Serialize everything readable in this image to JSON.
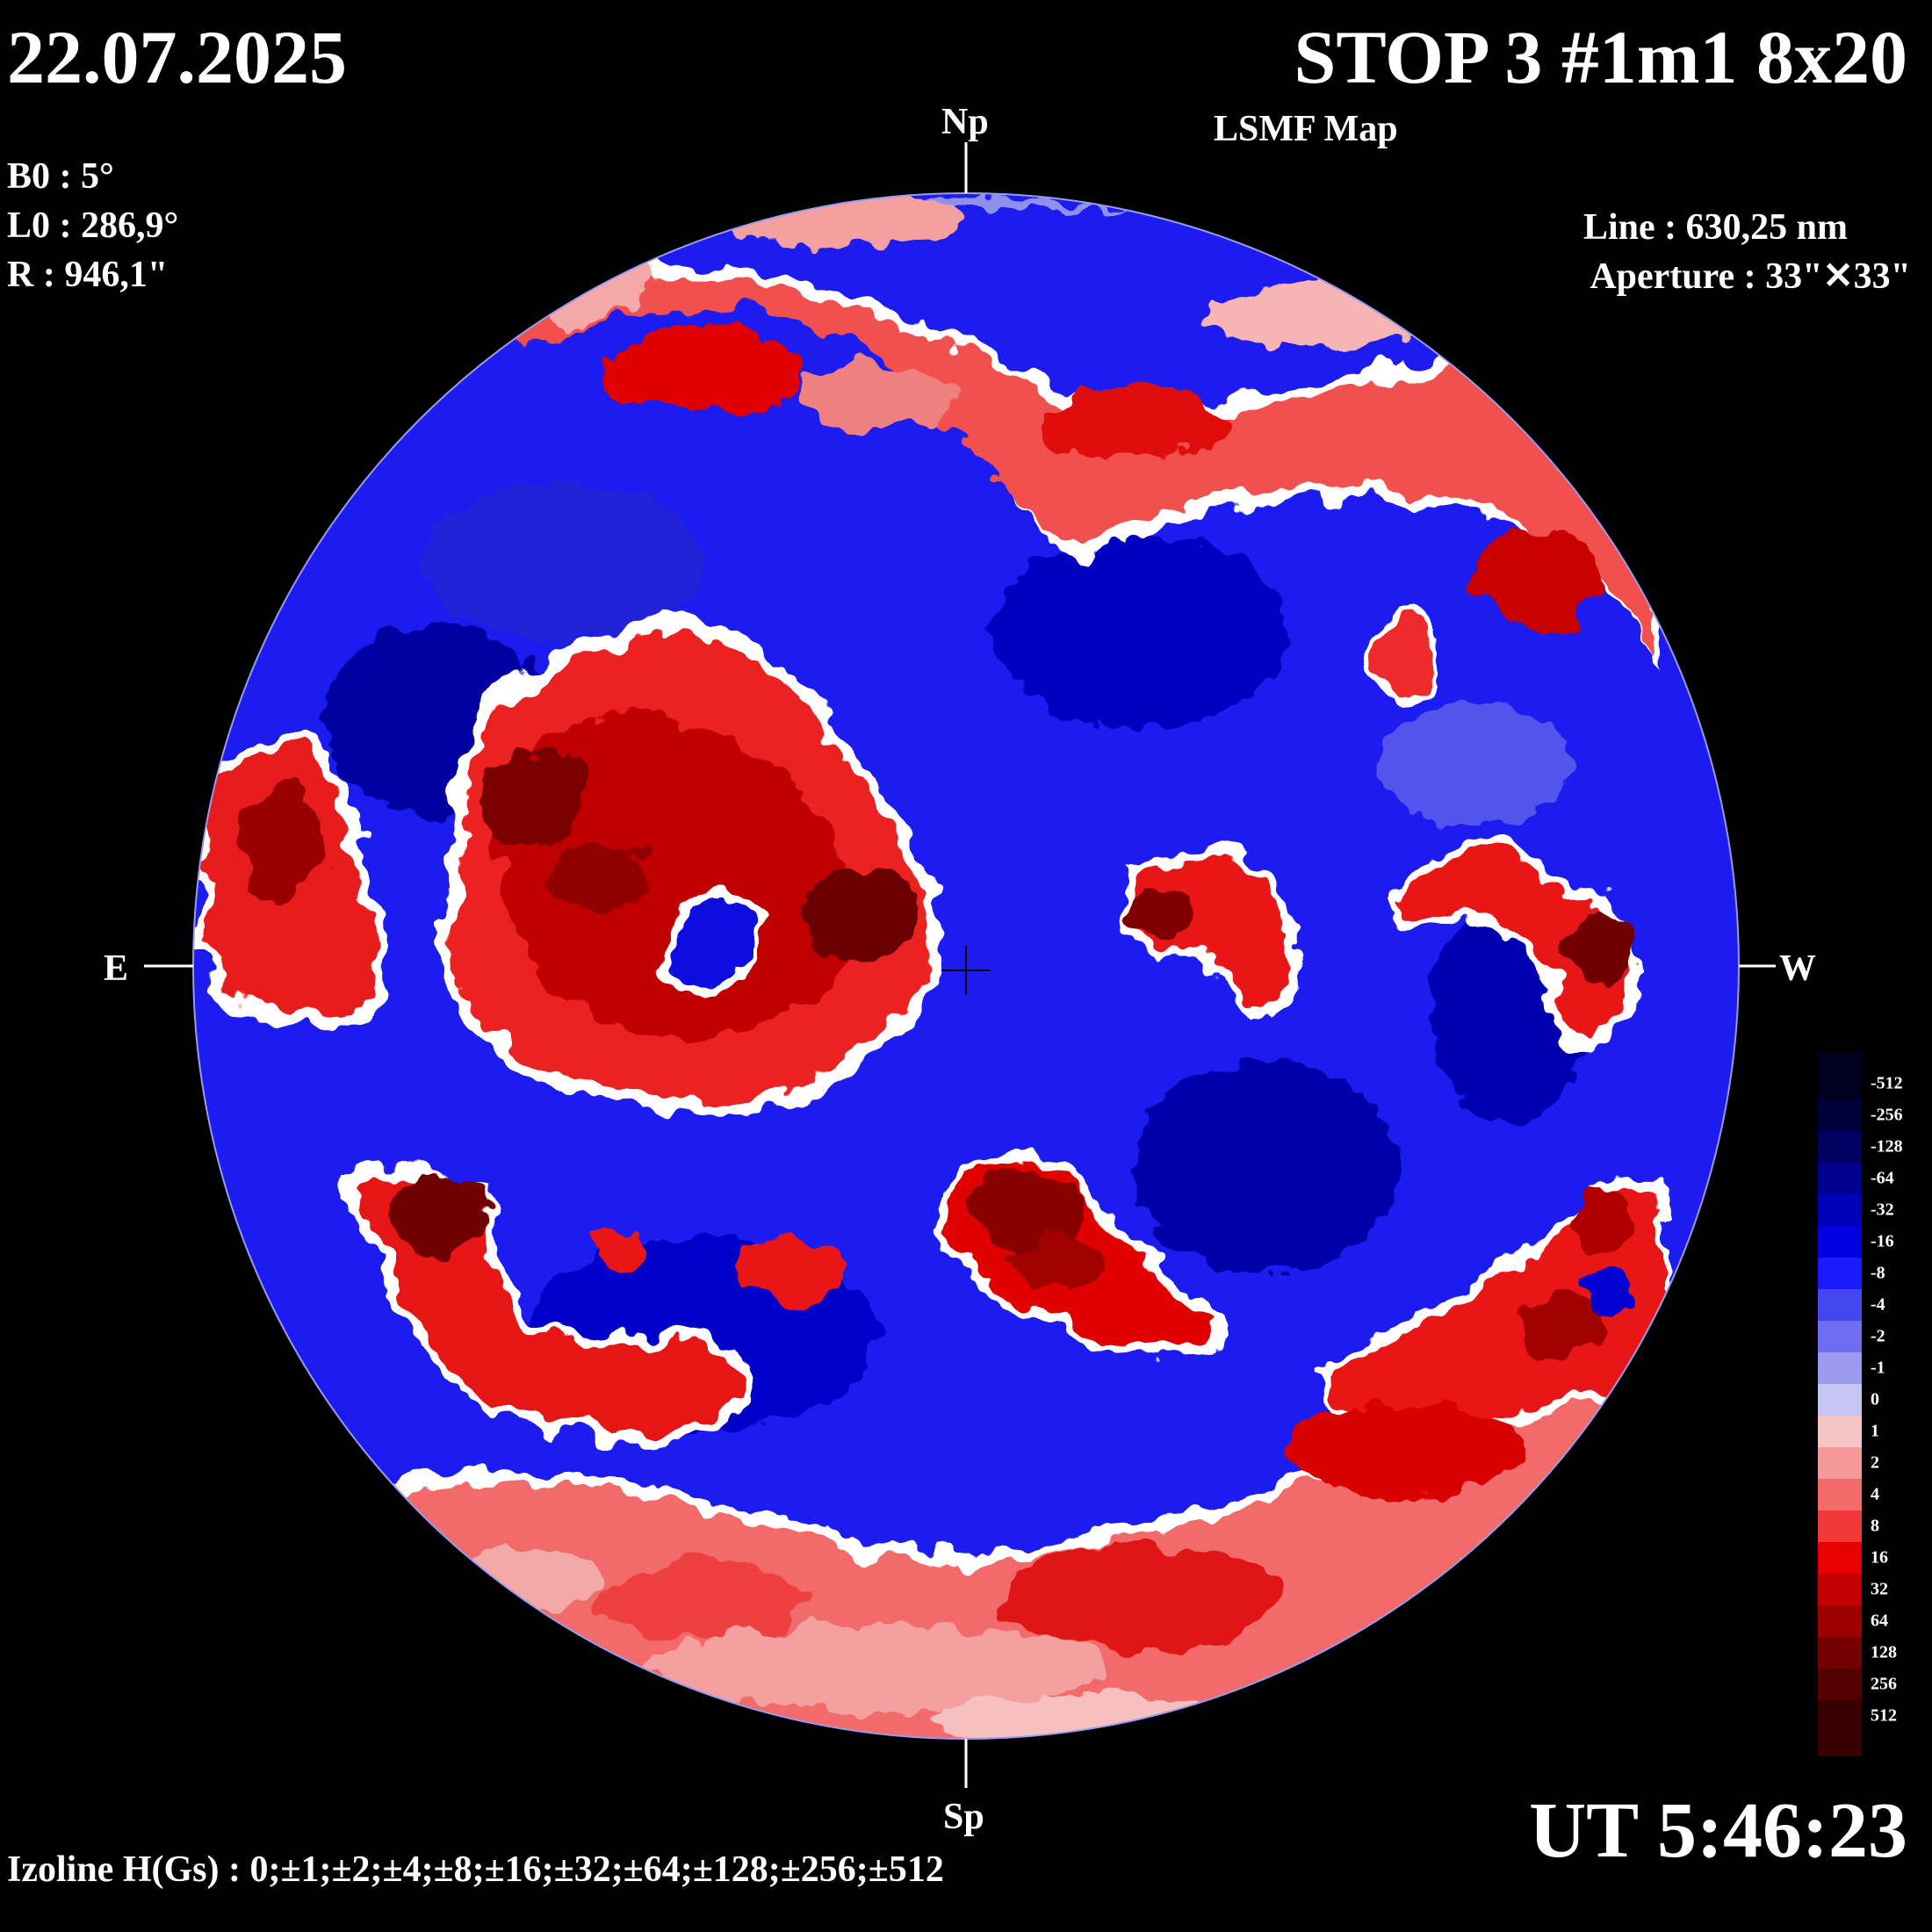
{
  "header": {
    "date": "22.07.2025",
    "title": "STOP 3 #1m1 8x20",
    "subtitle": "LSMF  Map"
  },
  "params": {
    "b0": "B0 : 5°",
    "l0": "L0 : 286,9°",
    "r": "R  : 946,1\"",
    "line": "Line :  630,25 nm",
    "aperture": "Aperture : 33\"✕33\""
  },
  "compass": {
    "north": "Np",
    "south": "Sp",
    "east": "E",
    "west": "W"
  },
  "footer": {
    "time": "UT 5:46:23",
    "isolines": "Izoline H(Gs) : 0;±1;±2;±4;±8;±16;±32;±64;±128;±256;±512"
  },
  "colors": {
    "positive": "#e00000",
    "negative": "#1010e0",
    "zero_line": "#ffffff",
    "background": "#000000"
  },
  "scale": {
    "levels": [
      {
        "label": "-512",
        "color": "#000020"
      },
      {
        "label": "-256",
        "color": "#00003a"
      },
      {
        "label": "-128",
        "color": "#000060"
      },
      {
        "label": "-64",
        "color": "#000090"
      },
      {
        "label": "-32",
        "color": "#0000b8"
      },
      {
        "label": "-16",
        "color": "#0000e0"
      },
      {
        "label": "-8",
        "color": "#1a1aff"
      },
      {
        "label": "-4",
        "color": "#4646f0"
      },
      {
        "label": "-2",
        "color": "#6e6ef0"
      },
      {
        "label": "-1",
        "color": "#9a9aee"
      },
      {
        "label": "0",
        "color": "#c6c6f4"
      },
      {
        "label": "1",
        "color": "#f6c6c6"
      },
      {
        "label": "2",
        "color": "#f49a9a"
      },
      {
        "label": "4",
        "color": "#f26a6a"
      },
      {
        "label": "8",
        "color": "#f03838"
      },
      {
        "label": "16",
        "color": "#e80000"
      },
      {
        "label": "32",
        "color": "#c40000"
      },
      {
        "label": "64",
        "color": "#9c0000"
      },
      {
        "label": "128",
        "color": "#740000"
      },
      {
        "label": "256",
        "color": "#520000"
      },
      {
        "label": "512",
        "color": "#380000"
      }
    ]
  },
  "map_regions": [
    {
      "name": "north-positive-band",
      "polarity": "positive",
      "strength": 8
    },
    {
      "name": "east-positive-ring",
      "polarity": "positive",
      "strength": 128
    },
    {
      "name": "east-limb-positive",
      "polarity": "positive",
      "strength": 64
    },
    {
      "name": "central-west-positive",
      "polarity": "positive",
      "strength": 64
    },
    {
      "name": "west-positive",
      "polarity": "positive",
      "strength": 128
    },
    {
      "name": "south-central-positive",
      "polarity": "positive",
      "strength": 128
    },
    {
      "name": "southeast-positive",
      "polarity": "positive",
      "strength": 128
    },
    {
      "name": "south-positive-band",
      "polarity": "positive",
      "strength": 8
    },
    {
      "name": "southwest-positive",
      "polarity": "positive",
      "strength": 32
    },
    {
      "name": "northwest-positive",
      "polarity": "positive",
      "strength": 32
    }
  ]
}
